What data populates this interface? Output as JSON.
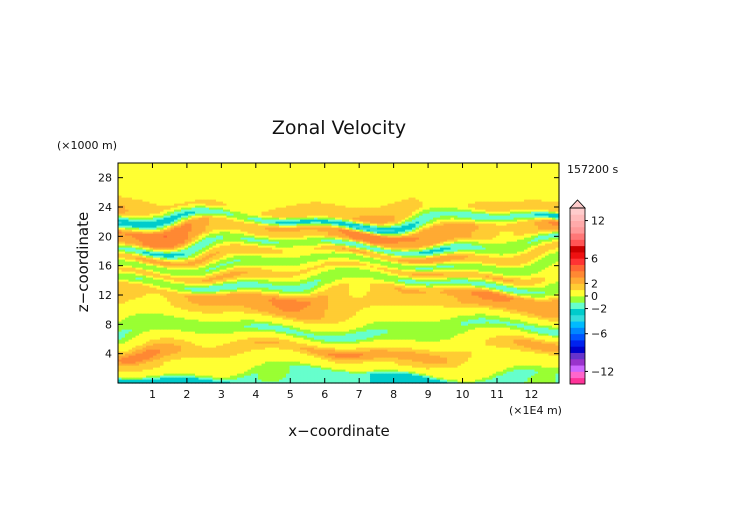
{
  "chart_data": {
    "type": "heatmap",
    "title": "Zonal Velocity",
    "xlabel": "x−coordinate",
    "ylabel": "z−coordinate",
    "x_units": "(×1E4 m)",
    "y_units": "(×1000 m)",
    "time_label": "157200 s",
    "xlim": [
      0,
      12.8
    ],
    "ylim": [
      0,
      30
    ],
    "x_ticks": [
      "1",
      "2",
      "3",
      "4",
      "5",
      "6",
      "7",
      "8",
      "9",
      "10",
      "11",
      "12"
    ],
    "y_ticks": [
      "4",
      "8",
      "12",
      "16",
      "20",
      "24",
      "28"
    ],
    "colorbar": {
      "levels": [
        -14,
        -13,
        -12,
        -11,
        -10,
        -9,
        -8,
        -7,
        -6,
        -5,
        -4,
        -3,
        -2,
        -1,
        0,
        1,
        2,
        3,
        4,
        5,
        6,
        7,
        8,
        9,
        10,
        11,
        12,
        13,
        14
      ],
      "colors": [
        "#ff3399",
        "#ff66cc",
        "#cc66ff",
        "#9933cc",
        "#6633cc",
        "#0000cc",
        "#0022ee",
        "#0055ff",
        "#0088ff",
        "#00bbff",
        "#33dddd",
        "#00cccc",
        "#66ffcc",
        "#99ff33",
        "#ffff33",
        "#ffcc33",
        "#ffaa33",
        "#ff8833",
        "#ff6633",
        "#ff3333",
        "#ee1111",
        "#cc0000",
        "#ff5555",
        "#ff7777",
        "#ff9999",
        "#ffaaaa",
        "#ffbbbb",
        "#ffcccc"
      ],
      "tick_labels": [
        "12",
        "6",
        "2",
        "0",
        "−2",
        "−6",
        "−12"
      ],
      "tick_values": [
        12,
        6,
        2,
        0,
        -2,
        -6,
        -12
      ]
    },
    "band_profile": {
      "z": [
        1,
        2,
        3,
        4.4,
        6,
        7.2,
        8.8,
        10.6,
        12.2,
        13.8,
        15.2,
        16.4,
        17.6,
        18.8,
        20,
        21,
        22.2,
        23.4,
        26,
        29
      ],
      "u": [
        -2.5,
        0.5,
        1,
        3,
        0.5,
        -1.5,
        0.5,
        2.5,
        3,
        -1.5,
        2,
        -1,
        2.5,
        -2,
        3,
        3.5,
        -3,
        2,
        0.5,
        0.6
      ]
    }
  }
}
